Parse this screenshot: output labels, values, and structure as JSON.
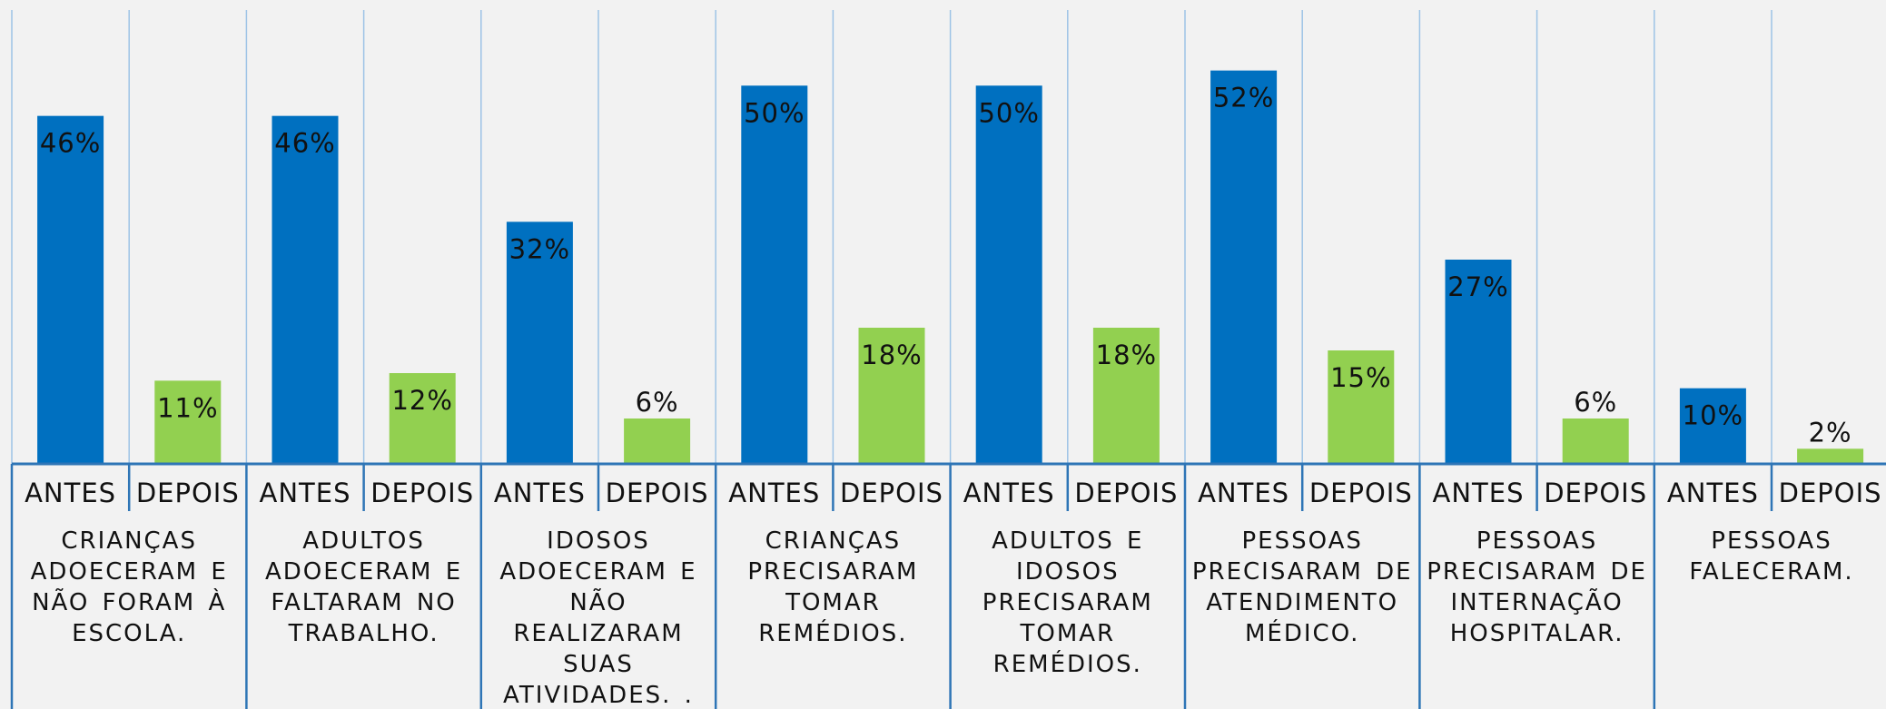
{
  "chart_data": {
    "type": "bar",
    "categories": [
      "CRIANÇAS ADOECERAM E NÃO FORAM À ESCOLA.",
      "ADULTOS ADOECERAM E FALTARAM NO TRABALHO.",
      "IDOSOS ADOECERAM E NÃO REALIZARAM SUAS ATIVIDADES. .",
      "CRIANÇAS PRECISARAM TOMAR REMÉDIOS.",
      "ADULTOS E IDOSOS PRECISARAM TOMAR REMÉDIOS.",
      "PESSOAS PRECISARAM DE ATENDIMENTO MÉDICO.",
      "PESSOAS PRECISARAM DE INTERNAÇÃO HOSPITALAR.",
      "PESSOAS FALECERAM."
    ],
    "series": [
      {
        "name": "ANTES",
        "color": "#0070c0",
        "values": [
          46,
          46,
          32,
          50,
          50,
          52,
          27,
          10
        ],
        "value_labels": [
          "46%",
          "46%",
          "32%",
          "50%",
          "50%",
          "52%",
          "27%",
          "10%"
        ]
      },
      {
        "name": "DEPOIS",
        "color": "#92d050",
        "values": [
          11,
          12,
          6,
          18,
          18,
          15,
          6,
          2
        ],
        "value_labels": [
          "11%",
          "12%",
          "6%",
          "18%",
          "18%",
          "15%",
          "6%",
          "2%"
        ]
      }
    ],
    "ylim": [
      0,
      60
    ]
  }
}
